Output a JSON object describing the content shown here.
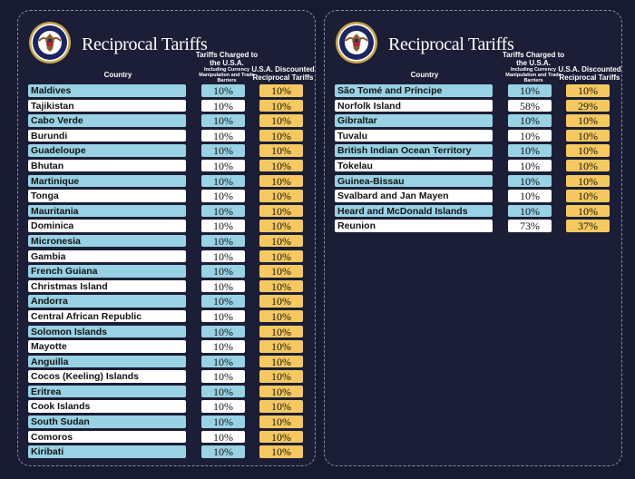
{
  "title": "Reciprocal Tariffs",
  "headers": {
    "country": "Country",
    "tariffs_main": "Tariffs Charged to the U.S.A.",
    "tariffs_sub": "Including Currency Manipulation and Trade Barriers",
    "discounted": "U.S.A. Discounted Reciprocal Tariffs"
  },
  "seal": {
    "text": "SEAL OF THE PRESIDENT OF THE UNITED STATES"
  },
  "colors": {
    "background": "#171a30",
    "row_blue": "#98d2e4",
    "row_white": "#ffffff",
    "discount": "#f5c95f"
  },
  "left_table": [
    {
      "country": "Maldives",
      "tariff": "10%",
      "discounted": "10%"
    },
    {
      "country": "Tajikistan",
      "tariff": "10%",
      "discounted": "10%"
    },
    {
      "country": "Cabo Verde",
      "tariff": "10%",
      "discounted": "10%"
    },
    {
      "country": "Burundi",
      "tariff": "10%",
      "discounted": "10%"
    },
    {
      "country": "Guadeloupe",
      "tariff": "10%",
      "discounted": "10%"
    },
    {
      "country": "Bhutan",
      "tariff": "10%",
      "discounted": "10%"
    },
    {
      "country": "Martinique",
      "tariff": "10%",
      "discounted": "10%"
    },
    {
      "country": "Tonga",
      "tariff": "10%",
      "discounted": "10%"
    },
    {
      "country": "Mauritania",
      "tariff": "10%",
      "discounted": "10%"
    },
    {
      "country": "Dominica",
      "tariff": "10%",
      "discounted": "10%"
    },
    {
      "country": "Micronesia",
      "tariff": "10%",
      "discounted": "10%"
    },
    {
      "country": "Gambia",
      "tariff": "10%",
      "discounted": "10%"
    },
    {
      "country": "French Guiana",
      "tariff": "10%",
      "discounted": "10%"
    },
    {
      "country": "Christmas Island",
      "tariff": "10%",
      "discounted": "10%"
    },
    {
      "country": "Andorra",
      "tariff": "10%",
      "discounted": "10%"
    },
    {
      "country": "Central African Republic",
      "tariff": "10%",
      "discounted": "10%"
    },
    {
      "country": "Solomon Islands",
      "tariff": "10%",
      "discounted": "10%"
    },
    {
      "country": "Mayotte",
      "tariff": "10%",
      "discounted": "10%"
    },
    {
      "country": "Anguilla",
      "tariff": "10%",
      "discounted": "10%"
    },
    {
      "country": "Cocos (Keeling) Islands",
      "tariff": "10%",
      "discounted": "10%"
    },
    {
      "country": "Eritrea",
      "tariff": "10%",
      "discounted": "10%"
    },
    {
      "country": "Cook Islands",
      "tariff": "10%",
      "discounted": "10%"
    },
    {
      "country": "South Sudan",
      "tariff": "10%",
      "discounted": "10%"
    },
    {
      "country": "Comoros",
      "tariff": "10%",
      "discounted": "10%"
    },
    {
      "country": "Kiribati",
      "tariff": "10%",
      "discounted": "10%"
    }
  ],
  "right_table": [
    {
      "country": "São Tomé and Príncipe",
      "tariff": "10%",
      "discounted": "10%"
    },
    {
      "country": "Norfolk Island",
      "tariff": "58%",
      "discounted": "29%"
    },
    {
      "country": "Gibraltar",
      "tariff": "10%",
      "discounted": "10%"
    },
    {
      "country": "Tuvalu",
      "tariff": "10%",
      "discounted": "10%"
    },
    {
      "country": "British Indian Ocean Territory",
      "tariff": "10%",
      "discounted": "10%"
    },
    {
      "country": "Tokelau",
      "tariff": "10%",
      "discounted": "10%"
    },
    {
      "country": "Guinea-Bissau",
      "tariff": "10%",
      "discounted": "10%"
    },
    {
      "country": "Svalbard and Jan Mayen",
      "tariff": "10%",
      "discounted": "10%"
    },
    {
      "country": "Heard and McDonald Islands",
      "tariff": "10%",
      "discounted": "10%"
    },
    {
      "country": "Reunion",
      "tariff": "73%",
      "discounted": "37%"
    }
  ]
}
